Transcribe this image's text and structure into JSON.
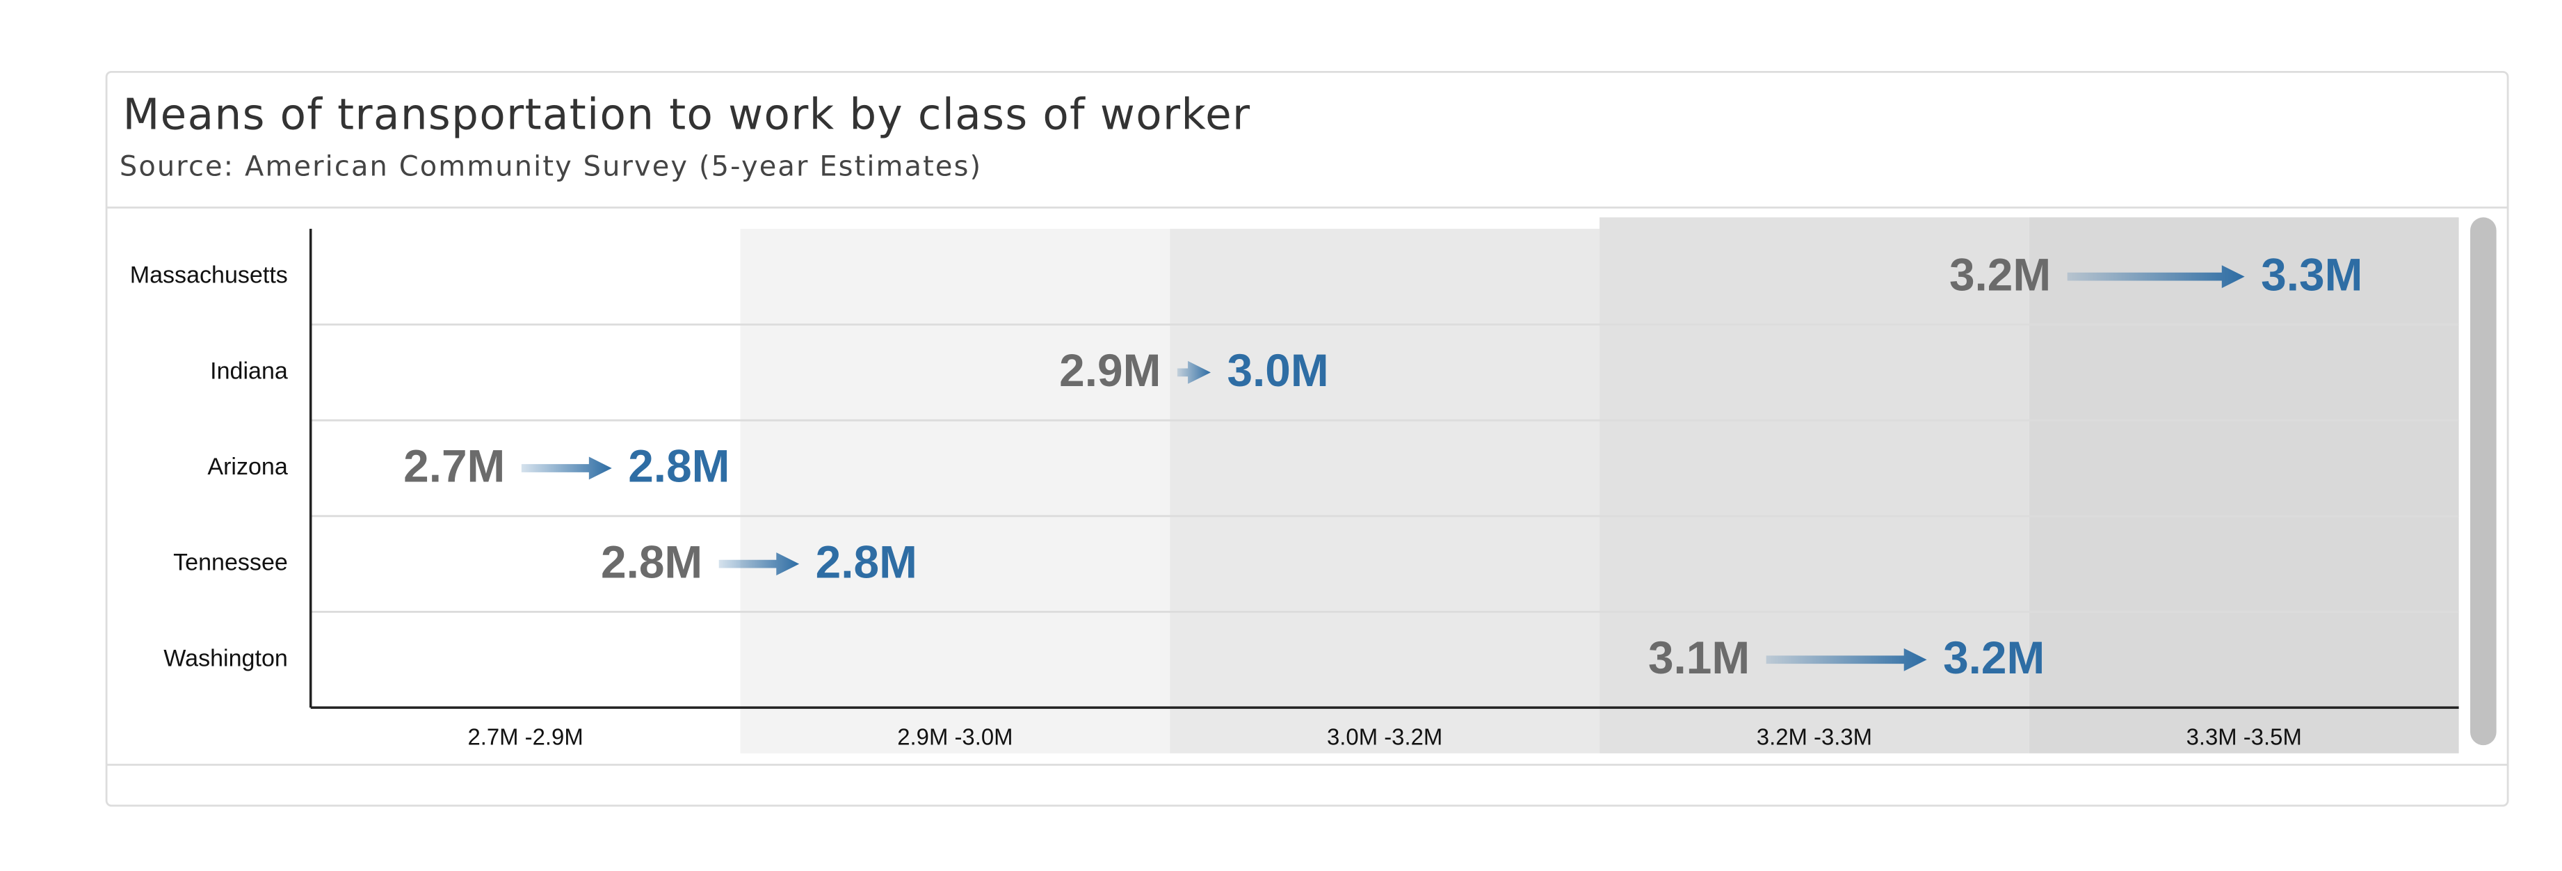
{
  "chart_data": {
    "type": "arrow",
    "title": "Means of transportation to work by class of worker",
    "subtitle": "Source: American Community Survey (5-year Estimates)",
    "categories": [
      "Massachusetts",
      "Indiana",
      "Arizona",
      "Tennessee",
      "Washington"
    ],
    "from_values": [
      3207000,
      2941000,
      2745000,
      2804000,
      3117000
    ],
    "from_value_labels": [
      "3.2M",
      "2.9M",
      "2.7M",
      "2.8M",
      "3.1M"
    ],
    "to_values": [
      3260000,
      2951000,
      2772000,
      2828000,
      3165000
    ],
    "to_value_labels": [
      "3.3M",
      "3.0M",
      "2.8M",
      "2.8M",
      "3.2M"
    ],
    "from_color": "#6b6b6b",
    "to_color": "#2e6da4",
    "xlim": [
      2682000,
      3324000
    ],
    "bands": [
      "2.7M -2.9M",
      "2.9M -3.0M",
      "3.0M -3.2M",
      "3.2M -3.3M",
      "3.3M -3.5M"
    ],
    "band_colors": [
      "#ffffff",
      "#f3f3f3",
      "#e9e9e9",
      "#e1e1e1",
      "#d9d9d9"
    ]
  }
}
